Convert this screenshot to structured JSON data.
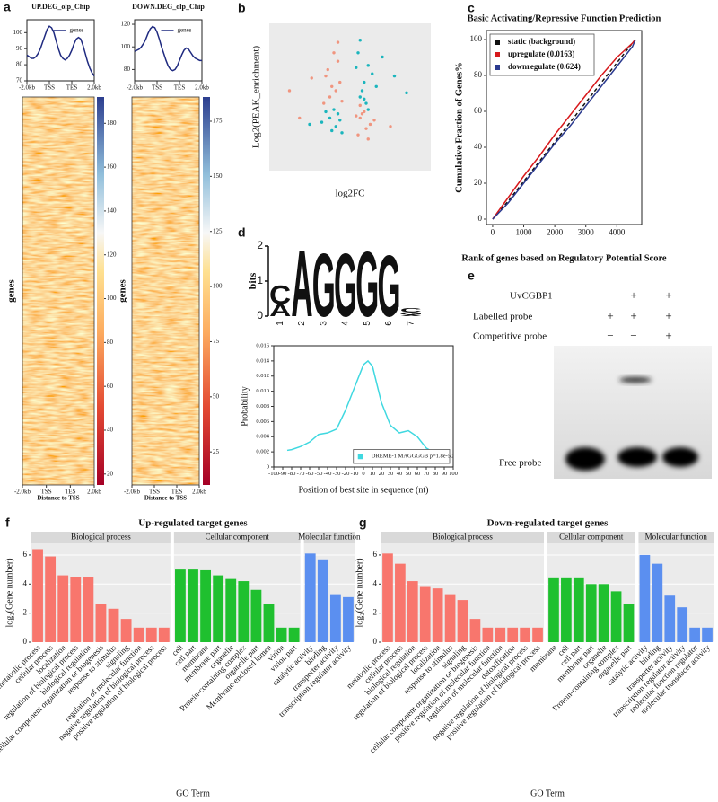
{
  "chart_data": [
    {
      "type": "line",
      "panel": "a",
      "title": "UP.DEG_olp_Chip",
      "legend": "upper right",
      "legend_marker": "line",
      "x": [
        0,
        1,
        2,
        3,
        4,
        5,
        6,
        7,
        8,
        9,
        10,
        11,
        12,
        13,
        14,
        15,
        16,
        17,
        18,
        19,
        20,
        21,
        22,
        23,
        24,
        25,
        26,
        27,
        28,
        29,
        30
      ],
      "xlim": [
        0,
        30
      ],
      "xticks": [
        {
          "value": 0,
          "label": "-2.0kb"
        },
        {
          "value": 10,
          "label": "TSS"
        },
        {
          "value": 20,
          "label": "TES"
        },
        {
          "value": 30,
          "label": "2.0kb"
        }
      ],
      "ylim": [
        70,
        108
      ],
      "yticks": [
        70,
        80,
        90,
        100
      ],
      "series": [
        {
          "name": "genes",
          "color": "#1f2a80",
          "values": [
            86,
            85,
            84,
            84,
            85,
            87,
            90,
            94,
            98,
            102,
            104,
            103,
            100,
            95,
            90,
            86,
            84,
            83,
            84,
            86,
            89,
            93,
            96,
            97,
            96,
            92,
            87,
            82,
            78,
            75,
            73
          ]
        }
      ]
    },
    {
      "type": "heatmap",
      "ylabel": "genes",
      "xlabel": "Distance to TSS",
      "xlim": [
        0,
        30
      ],
      "xticks": [
        {
          "value": 0,
          "label": "-2.0kb"
        },
        {
          "value": 10,
          "label": "TSS"
        },
        {
          "value": 20,
          "label": "TES"
        },
        {
          "value": 30,
          "label": "2.0kb"
        }
      ],
      "colorbar_lim": [
        15,
        192
      ],
      "colorbar_ticks": [
        20,
        40,
        60,
        80,
        100,
        120,
        140,
        160,
        180
      ]
    },
    {
      "type": "line",
      "title": "DOWN.DEG_olp_Chip",
      "legend": "upper right",
      "legend_marker": "line",
      "x": [
        0,
        1,
        2,
        3,
        4,
        5,
        6,
        7,
        8,
        9,
        10,
        11,
        12,
        13,
        14,
        15,
        16,
        17,
        18,
        19,
        20,
        21,
        22,
        23,
        24,
        25,
        26,
        27,
        28,
        29,
        30
      ],
      "xlim": [
        0,
        30
      ],
      "xticks": [
        {
          "value": 0,
          "label": "-2.0kb"
        },
        {
          "value": 10,
          "label": "TSS"
        },
        {
          "value": 20,
          "label": "TES"
        },
        {
          "value": 30,
          "label": "2.0kb"
        }
      ],
      "ylim": [
        70,
        124
      ],
      "yticks": [
        80,
        100,
        120
      ],
      "series": [
        {
          "name": "genes",
          "color": "#1f2a80",
          "values": [
            96,
            97,
            98,
            100,
            103,
            107,
            112,
            116,
            118,
            117,
            113,
            107,
            100,
            94,
            88,
            83,
            80,
            79,
            80,
            83,
            88,
            93,
            97,
            99,
            98,
            95,
            92,
            90,
            89,
            88,
            88
          ]
        }
      ]
    },
    {
      "type": "heatmap",
      "ylabel": "genes",
      "xlabel": "Distance to TSS",
      "xlim": [
        0,
        30
      ],
      "xticks": [
        {
          "value": 0,
          "label": "-2.0kb"
        },
        {
          "value": 10,
          "label": "TSS"
        },
        {
          "value": 20,
          "label": "TES"
        },
        {
          "value": 30,
          "label": "2.0kb"
        }
      ],
      "colorbar_lim": [
        10,
        186
      ],
      "colorbar_ticks": [
        25,
        50,
        75,
        100,
        125,
        150,
        175
      ]
    },
    {
      "type": "scatter",
      "panel": "b",
      "ylabel": "Log2(PEAK_enrichment)",
      "xlabel": "log2FC",
      "xlim": [
        -4,
        4
      ],
      "ylim": [
        -3,
        4
      ],
      "series": [
        {
          "color": "#f0957f",
          "x": [
            -1.2,
            -0.9,
            -0.6,
            -1.0,
            -0.5,
            -1.3,
            -0.8,
            -0.7,
            -1.1,
            -0.4,
            -2.5,
            -3.0,
            -1.9,
            0.5,
            0.8,
            0.6,
            1.0,
            0.4,
            0.7,
            0.9,
            1.2,
            0.5,
            2.0,
            0.3,
            -0.6
          ],
          "y": [
            1.5,
            1.0,
            2.2,
            0.5,
            1.2,
            0.2,
            2.6,
            0.8,
            1.8,
            0.3,
            -0.5,
            0.8,
            1.4,
            -0.5,
            -1.0,
            -0.3,
            -0.8,
            -1.3,
            -0.2,
            -1.5,
            -0.6,
            0.1,
            -0.9,
            -0.4,
            3.1
          ]
        },
        {
          "color": "#1bb5bd",
          "x": [
            -1.0,
            -0.7,
            -1.2,
            -0.5,
            -0.9,
            -0.6,
            -1.4,
            -0.8,
            -2.0,
            -0.4,
            0.5,
            0.7,
            0.9,
            0.6,
            1.1,
            0.4,
            0.8,
            1.3,
            0.5,
            0.7,
            1.6,
            2.2,
            0.9,
            0.3,
            2.8
          ],
          "y": [
            -0.5,
            -0.9,
            -0.2,
            -0.6,
            -1.1,
            -0.3,
            -0.7,
            -0.1,
            -0.8,
            -1.2,
            0.5,
            1.2,
            2.0,
            0.8,
            1.6,
            2.6,
            0.2,
            1.0,
            3.2,
            0.4,
            2.4,
            1.5,
            -0.1,
            1.9,
            0.7
          ]
        }
      ]
    },
    {
      "type": "line",
      "panel": "c",
      "title": "Basic Activating/Repressive Function Prediction",
      "xlabel": "Rank of genes based on Regulatory Potential Score",
      "ylabel": "Cumulative Fraction of Genes%",
      "legend": "upper left",
      "legend_marker": "square",
      "legend_frame": true,
      "x": [
        0,
        500,
        1000,
        1500,
        2000,
        2500,
        3000,
        3500,
        4000,
        4500,
        4600
      ],
      "xlim": [
        -200,
        4800
      ],
      "xticks": [
        0,
        1000,
        2000,
        3000,
        4000
      ],
      "ylim": [
        -3,
        105
      ],
      "yticks": [
        0,
        20,
        40,
        60,
        80,
        100
      ],
      "series": [
        {
          "name": "static (background)",
          "color": "#111111",
          "style": "dashed",
          "values": [
            0,
            10,
            21,
            32,
            43,
            54,
            65,
            76,
            87,
            98,
            100
          ]
        },
        {
          "name": "upregulate (0.0163)",
          "color": "#d7191c",
          "values": [
            0,
            12,
            24,
            35,
            47,
            58,
            69,
            80,
            90,
            98,
            100
          ]
        },
        {
          "name": "downregulate (0.624)",
          "color": "#2b3a8f",
          "values": [
            0,
            9,
            20,
            31,
            42,
            52,
            63,
            74,
            85,
            96,
            100
          ]
        }
      ]
    },
    {
      "type": "logo",
      "panel": "d",
      "ylabel": "bits",
      "ylim": [
        0,
        2
      ],
      "yticks": [
        0,
        1,
        2
      ],
      "letter_colors": {
        "A": "#d62728",
        "C": "#2446c8",
        "G": "#f2a81d",
        "T": "#2ca02c"
      },
      "positions": [
        {
          "position": 1,
          "letters": [
            {
              "letter": "A",
              "bits": 0.35
            },
            {
              "letter": "C",
              "bits": 0.55
            }
          ]
        },
        {
          "position": 2,
          "letters": [
            {
              "letter": "A",
              "bits": 1.95
            }
          ]
        },
        {
          "position": 3,
          "letters": [
            {
              "letter": "G",
              "bits": 1.85
            }
          ]
        },
        {
          "position": 4,
          "letters": [
            {
              "letter": "G",
              "bits": 1.85
            }
          ]
        },
        {
          "position": 5,
          "letters": [
            {
              "letter": "G",
              "bits": 1.9
            }
          ]
        },
        {
          "position": 6,
          "letters": [
            {
              "letter": "G",
              "bits": 1.8
            }
          ]
        },
        {
          "position": 7,
          "letters": [
            {
              "letter": "A",
              "bits": 0.04
            },
            {
              "letter": "G",
              "bits": 0.08
            },
            {
              "letter": "C",
              "bits": 0.12
            }
          ]
        }
      ]
    },
    {
      "type": "line",
      "ylabel": "Probability",
      "xlabel": "Position of best site in sequence (nt)",
      "legend": "lower right",
      "legend_marker": "square",
      "legend_frame": true,
      "x": [
        -85,
        -80,
        -70,
        -60,
        -50,
        -40,
        -30,
        -20,
        -10,
        0,
        5,
        10,
        20,
        30,
        40,
        50,
        60,
        70,
        80
      ],
      "xlim": [
        -100,
        100
      ],
      "xticks": [
        -100,
        -90,
        -80,
        -70,
        -60,
        -50,
        -40,
        -30,
        -20,
        -10,
        0,
        10,
        20,
        30,
        40,
        50,
        60,
        70,
        80,
        90,
        100
      ],
      "ylim": [
        0,
        0.016
      ],
      "yticks": [
        0,
        0.002,
        0.004,
        0.006,
        0.008,
        {
          "value": 0.01,
          "label": "0.010"
        },
        0.012,
        0.014,
        0.016
      ],
      "series": [
        {
          "name": "DREME-1 MAGGGGB p=1.8e-50",
          "color": "#3fd8e0",
          "values": [
            0.0022,
            0.0023,
            0.0027,
            0.0033,
            0.0043,
            0.0045,
            0.005,
            0.0075,
            0.0105,
            0.0135,
            0.014,
            0.0133,
            0.0085,
            0.0055,
            0.0045,
            0.0048,
            0.004,
            0.0025,
            0.0018
          ]
        }
      ]
    },
    {
      "type": "faceted-bar",
      "panel": "f",
      "title": "Up-regulated target genes",
      "ylabel": "log₂(Gene number)",
      "xlabel": "GO Term",
      "ylim": [
        0,
        6.8
      ],
      "yticks": [
        0,
        2,
        4,
        6
      ],
      "series": [
        {
          "name": "Biological process",
          "color": "#f8766d",
          "categories": [
            "metabolic process",
            "cellular process",
            "localization",
            "regulation of biological process",
            "biological regulation",
            "cellular component organization or biogenesis",
            "response to stimulus",
            "signaling",
            "regulation of molecular function",
            "negative regulation of biological process",
            "positive regulation of biological process"
          ],
          "values": [
            6.4,
            5.9,
            4.6,
            4.5,
            4.5,
            2.6,
            2.3,
            1.6,
            1,
            1,
            1
          ]
        },
        {
          "name": "Cellular component",
          "color": "#1fc02f",
          "categories": [
            "cell",
            "cell part",
            "membrane",
            "membrane part",
            "organelle",
            "Protein-containing complex",
            "organelle part",
            "Membrane-enclosed lumen",
            "virion",
            "virion part"
          ],
          "values": [
            5.0,
            5.0,
            4.95,
            4.6,
            4.35,
            4.2,
            3.6,
            2.6,
            1,
            1
          ]
        },
        {
          "name": "Molecular function",
          "color": "#5b8ff0",
          "categories": [
            "catalytic activity",
            "binding",
            "transporter activity",
            "transcription regulator activity"
          ],
          "values": [
            6.1,
            5.7,
            3.3,
            3.1
          ]
        }
      ]
    },
    {
      "type": "faceted-bar",
      "panel": "g",
      "title": "Down-regulated target genes",
      "ylabel": "log₂(Gene number)",
      "xlabel": "GO Term",
      "ylim": [
        0,
        6.8
      ],
      "yticks": [
        0,
        2,
        4,
        6
      ],
      "series": [
        {
          "name": "Biological process",
          "color": "#f8766d",
          "categories": [
            "metabolic process",
            "cellular process",
            "biological regulation",
            "regulation of biological process",
            "localization",
            "response to stimulus",
            "signaling",
            "cellular component organization or biogenesis",
            "positive regulation of molecular function",
            "regulation of molecular function",
            "detoxification",
            "negative regulation of biological process",
            "positive regulation of biological process"
          ],
          "values": [
            6.1,
            5.4,
            4.2,
            3.8,
            3.7,
            3.3,
            2.9,
            1.6,
            1,
            1,
            1,
            1,
            1
          ]
        },
        {
          "name": "Cellular component",
          "color": "#1fc02f",
          "categories": [
            "membrane",
            "cell",
            "cell part",
            "membrane part",
            "organelle",
            "Protein-containing complex",
            "organelle part"
          ],
          "values": [
            4.4,
            4.4,
            4.4,
            4.0,
            4.0,
            3.5,
            2.6
          ]
        },
        {
          "name": "Molecular function",
          "color": "#5b8ff0",
          "categories": [
            "catalytic activity",
            "binding",
            "transporter activity",
            "transcription regulator activity",
            "molecular function regulator",
            "molecular transducer activity"
          ],
          "values": [
            6.0,
            5.4,
            3.2,
            2.4,
            1,
            1
          ]
        }
      ]
    }
  ],
  "gel": {
    "panel": "e",
    "rows": [
      {
        "label": "UvCGBP1",
        "marks": [
          "−",
          "+",
          "+"
        ]
      },
      {
        "label": "Labelled probe",
        "marks": [
          "+",
          "+",
          "+"
        ]
      },
      {
        "label": "Competitive probe",
        "marks": [
          "−",
          "−",
          "+"
        ]
      }
    ],
    "free_probe_label": "Free probe"
  }
}
